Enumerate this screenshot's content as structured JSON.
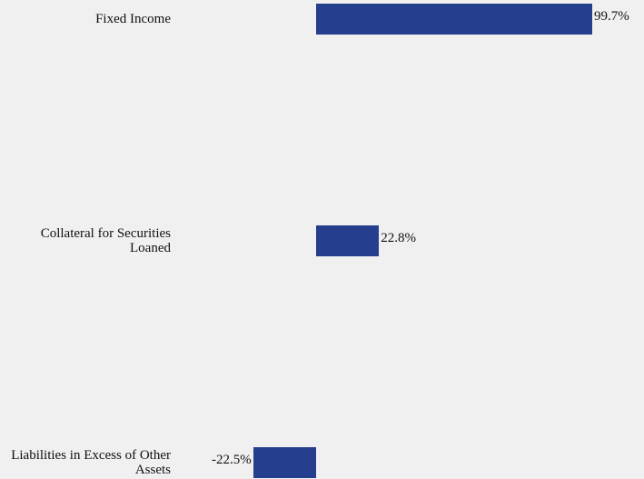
{
  "chart_data": {
    "type": "bar",
    "orientation": "horizontal",
    "categories": [
      "Fixed Income",
      "Collateral for Securities Loaned",
      "Liabilities in Excess of Other Assets"
    ],
    "values": [
      99.7,
      22.8,
      -22.5
    ],
    "value_labels": [
      "99.7%",
      "22.8%",
      "-22.5%"
    ],
    "color": "#253f8e"
  }
}
